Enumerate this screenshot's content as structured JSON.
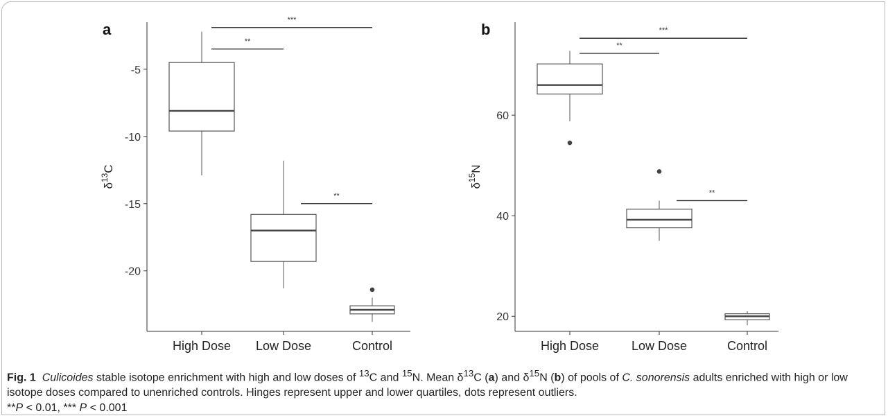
{
  "chart_data": [
    {
      "type": "box",
      "panel_label": "a",
      "ylabel_base": "δ",
      "ylabel_sup": "13",
      "ylabel_tail": "C",
      "ylim": [
        -24.5,
        -1.5
      ],
      "yticks": [
        -20,
        -15,
        -10,
        -5
      ],
      "categories": [
        "High Dose",
        "Low Dose",
        "Control"
      ],
      "boxes": [
        {
          "category": "High Dose",
          "whisker_low": -12.9,
          "q1": -9.6,
          "median": -8.1,
          "q3": -4.5,
          "whisker_high": -2.2,
          "outliers": []
        },
        {
          "category": "Low Dose",
          "whisker_low": -21.3,
          "q1": -19.3,
          "median": -17.0,
          "q3": -15.8,
          "whisker_high": -11.8,
          "outliers": []
        },
        {
          "category": "Control",
          "whisker_low": -23.8,
          "q1": -23.2,
          "median": -22.9,
          "q3": -22.6,
          "whisker_high": -22.0,
          "outliers": [
            -21.4
          ]
        }
      ],
      "significance": [
        {
          "from": 0,
          "to": 1,
          "y": -3.5,
          "label": "**"
        },
        {
          "from": 0,
          "to": 2,
          "y": -1.9,
          "label": "***"
        },
        {
          "from": 1,
          "to": 2,
          "y": -15.0,
          "label": "**"
        }
      ]
    },
    {
      "type": "box",
      "panel_label": "b",
      "ylabel_base": "δ",
      "ylabel_sup": "15",
      "ylabel_tail": "N",
      "ylim": [
        17,
        78.5
      ],
      "yticks": [
        20,
        40,
        60
      ],
      "categories": [
        "High Dose",
        "Low Dose",
        "Control"
      ],
      "boxes": [
        {
          "category": "High Dose",
          "whisker_low": 58.8,
          "q1": 64.2,
          "median": 66.0,
          "q3": 70.2,
          "whisker_high": 72.8,
          "outliers": [
            54.5
          ]
        },
        {
          "category": "Low Dose",
          "whisker_low": 35.0,
          "q1": 37.6,
          "median": 39.2,
          "q3": 41.3,
          "whisker_high": 43.0,
          "outliers": [
            48.8
          ]
        },
        {
          "category": "Control",
          "whisker_low": 18.2,
          "q1": 19.3,
          "median": 20.0,
          "q3": 20.5,
          "whisker_high": 21.0,
          "outliers": []
        }
      ],
      "significance": [
        {
          "from": 0,
          "to": 1,
          "y": 72.3,
          "label": "**"
        },
        {
          "from": 0,
          "to": 2,
          "y": 75.3,
          "label": "***"
        },
        {
          "from": 1,
          "to": 2,
          "y": 43.0,
          "label": "**"
        }
      ]
    }
  ],
  "caption": {
    "fig_label": "Fig. 1",
    "part1_italic": "Culicoides",
    "part2": " stable isotope enrichment with high and low doses of ",
    "sup13": "13",
    "part3": "C and ",
    "sup15": "15",
    "part4": "N. Mean δ",
    "part5": "C (",
    "bold_a": "a",
    "part6": ") and δ",
    "part7": "N (",
    "bold_b": "b",
    "part8": ") of pools of ",
    "species_italic": "C. sonorensis",
    "part9": " adults enriched with high or low isotope doses compared to unenriched controls. Hinges represent upper and lower quartiles, dots represent outliers.",
    "p1_stars": "**",
    "p1_italic": "P",
    "p1_rest": " < 0.01, *** ",
    "p2_italic": "P",
    "p2_rest": " < 0.001"
  }
}
